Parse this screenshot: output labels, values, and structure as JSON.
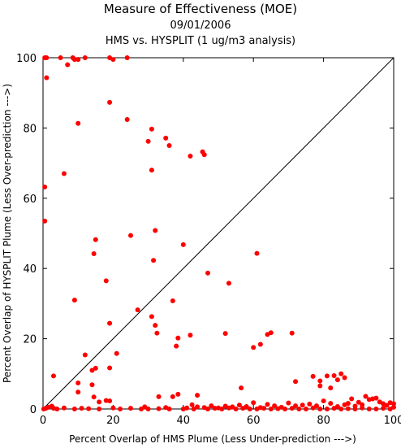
{
  "chart_data": {
    "type": "scatter",
    "title": "Measure of Effectiveness (MOE)",
    "subtitle_lines": [
      "09/01/2006",
      "HMS vs. HYSPLIT  (1 ug/m3 analysis)"
    ],
    "xlabel": "Percent Overlap of HMS Plume (Less Under-prediction --->)",
    "ylabel": "Percent Overlap of HYSPLIT Plume (Less Over-prediction --->)",
    "xlim": [
      0,
      100
    ],
    "ylim": [
      0,
      100
    ],
    "xticks": [
      0,
      20,
      40,
      60,
      80,
      100
    ],
    "yticks": [
      0,
      20,
      40,
      60,
      80,
      100
    ],
    "point_color": "#ff0000",
    "reference_line": [
      [
        0,
        0
      ],
      [
        100,
        100
      ]
    ],
    "series": [
      {
        "points": [
          [
            0.5,
            100
          ],
          [
            1,
            100
          ],
          [
            5,
            100
          ],
          [
            7,
            98
          ],
          [
            8.5,
            100
          ],
          [
            9,
            99.5
          ],
          [
            10,
            99.5
          ],
          [
            12,
            100
          ],
          [
            19,
            100
          ],
          [
            20,
            99.5
          ],
          [
            24,
            100
          ],
          [
            1,
            94.3
          ],
          [
            10,
            81.3
          ],
          [
            6,
            67
          ],
          [
            0.5,
            63.2
          ],
          [
            0.5,
            53.5
          ],
          [
            9,
            31
          ],
          [
            3,
            9.4
          ],
          [
            19,
            87.3
          ],
          [
            24,
            82.4
          ],
          [
            30,
            76.2
          ],
          [
            31,
            79.7
          ],
          [
            35,
            77.1
          ],
          [
            36,
            75
          ],
          [
            42,
            72
          ],
          [
            45.5,
            73.2
          ],
          [
            46,
            72.4
          ],
          [
            31,
            68
          ],
          [
            25,
            49.4
          ],
          [
            15,
            48.2
          ],
          [
            14.5,
            44.2
          ],
          [
            18,
            36.5
          ],
          [
            31.5,
            42.3
          ],
          [
            32,
            50.8
          ],
          [
            40,
            46.8
          ],
          [
            47,
            38.7
          ],
          [
            53,
            35.8
          ],
          [
            61,
            44.3
          ],
          [
            27,
            28.2
          ],
          [
            31,
            26.3
          ],
          [
            32,
            23.8
          ],
          [
            32.5,
            21.6
          ],
          [
            37,
            30.8
          ],
          [
            38,
            17.9
          ],
          [
            38.5,
            20.2
          ],
          [
            42,
            21
          ],
          [
            52,
            21.5
          ],
          [
            60,
            17.5
          ],
          [
            62,
            18.4
          ],
          [
            64,
            21.2
          ],
          [
            65,
            21.7
          ],
          [
            71,
            21.6
          ],
          [
            19,
            24.4
          ],
          [
            21,
            15.8
          ],
          [
            12,
            15.4
          ],
          [
            14,
            11
          ],
          [
            15,
            11.6
          ],
          [
            14,
            6.9
          ],
          [
            10,
            7.4
          ],
          [
            10,
            4.8
          ],
          [
            14.5,
            3.4
          ],
          [
            16,
            2
          ],
          [
            18,
            2.4
          ],
          [
            19,
            2.3
          ],
          [
            19,
            11.7
          ],
          [
            33,
            3.5
          ],
          [
            37,
            3.5
          ],
          [
            38.5,
            4.2
          ],
          [
            42.5,
            1.2
          ],
          [
            44,
            3.9
          ],
          [
            56.5,
            6
          ],
          [
            72,
            7.8
          ],
          [
            77,
            9.3
          ],
          [
            79,
            8
          ],
          [
            79,
            6.6
          ],
          [
            81,
            9.4
          ],
          [
            83,
            9.5
          ],
          [
            84,
            8.3
          ],
          [
            85,
            10
          ],
          [
            86,
            8.9
          ],
          [
            82,
            6
          ],
          [
            87,
            1.6
          ],
          [
            89,
            0.8
          ],
          [
            91,
            1.2
          ],
          [
            92,
            3.6
          ],
          [
            93,
            2.7
          ],
          [
            94,
            2.9
          ],
          [
            95,
            3.1
          ],
          [
            96,
            2
          ],
          [
            97,
            1.5
          ],
          [
            98,
            1
          ],
          [
            99,
            1.8
          ],
          [
            100,
            0.5
          ],
          [
            100,
            1.5
          ],
          [
            88,
            2.9
          ],
          [
            90,
            1.9
          ],
          [
            86,
            1.2
          ],
          [
            84,
            0.7
          ],
          [
            82,
            1.6
          ],
          [
            80,
            2.3
          ],
          [
            78,
            0.9
          ],
          [
            76,
            1.4
          ],
          [
            74,
            1.1
          ],
          [
            72,
            0.9
          ],
          [
            70,
            1.7
          ],
          [
            68,
            0.5
          ],
          [
            66,
            0.9
          ],
          [
            64,
            1.3
          ],
          [
            62,
            0.4
          ],
          [
            60,
            1.8
          ],
          [
            58,
            0.7
          ],
          [
            56,
            1.1
          ],
          [
            54,
            0.6
          ],
          [
            52,
            0.8
          ],
          [
            50,
            0.3
          ],
          [
            48,
            0.9
          ],
          [
            46,
            0.4
          ],
          [
            44,
            0.6
          ],
          [
            0.2,
            0
          ],
          [
            0.8,
            0.2
          ],
          [
            1.5,
            0.5
          ],
          [
            2.5,
            0.8
          ],
          [
            3,
            0.2
          ],
          [
            4,
            0
          ],
          [
            6,
            0.3
          ],
          [
            9,
            0
          ],
          [
            11,
            0.2
          ],
          [
            13,
            0.1
          ],
          [
            16,
            0
          ],
          [
            20,
            0.3
          ],
          [
            22,
            0
          ],
          [
            25,
            0.2
          ],
          [
            28,
            0
          ],
          [
            29,
            0.6
          ],
          [
            30,
            0
          ],
          [
            33,
            0.1
          ],
          [
            35,
            0.4
          ],
          [
            36,
            0
          ],
          [
            40,
            0
          ],
          [
            41,
            0.3
          ],
          [
            43,
            0
          ],
          [
            47,
            0
          ],
          [
            49,
            0.2
          ],
          [
            51,
            0
          ],
          [
            53,
            0.3
          ],
          [
            55,
            0
          ],
          [
            57,
            0.2
          ],
          [
            59,
            0
          ],
          [
            61,
            0
          ],
          [
            63,
            0.2
          ],
          [
            65,
            0
          ],
          [
            67,
            0.1
          ],
          [
            69,
            0
          ],
          [
            71,
            0.2
          ],
          [
            73,
            0
          ],
          [
            75,
            0
          ],
          [
            77,
            0.3
          ],
          [
            79,
            0
          ],
          [
            81,
            0
          ],
          [
            83,
            0.2
          ],
          [
            85,
            0
          ],
          [
            87,
            0.1
          ],
          [
            89,
            0
          ],
          [
            91,
            0.3
          ],
          [
            93,
            0
          ],
          [
            95,
            0
          ],
          [
            97,
            0.2
          ],
          [
            99,
            0
          ]
        ]
      }
    ]
  }
}
